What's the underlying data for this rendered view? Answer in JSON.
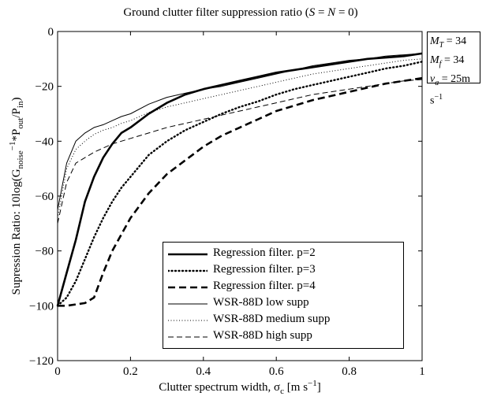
{
  "chart_data": {
    "type": "line",
    "title": "Ground clutter filter suppression ratio (S = N = 0)",
    "xlabel": "Clutter spectrum width, σc [m s−1]",
    "ylabel": "Supression Ratio: 10log(Gnoise−1 *Pout/Pin)",
    "xlim": [
      0,
      1
    ],
    "ylim": [
      -120,
      0
    ],
    "xticks": [
      "0",
      "0.2",
      "0.4",
      "0.6",
      "0.8",
      "1"
    ],
    "yticks": [
      "0",
      "−20",
      "−40",
      "−60",
      "−80",
      "−100",
      "−120"
    ],
    "grid": false,
    "legend_position": "lower-right",
    "parameters": [
      "MT = 34",
      "Mf = 34",
      "va = 25m s−1"
    ],
    "x": [
      0,
      0.025,
      0.05,
      0.075,
      0.1,
      0.125,
      0.15,
      0.175,
      0.2,
      0.25,
      0.3,
      0.35,
      0.4,
      0.45,
      0.5,
      0.55,
      0.6,
      0.65,
      0.7,
      0.75,
      0.8,
      0.85,
      0.9,
      0.95,
      1.0
    ],
    "series": [
      {
        "name": "Regression filter. p=2",
        "style": "solid-thick",
        "values": [
          -100,
          -88,
          -76,
          -62,
          -53,
          -46,
          -41,
          -37,
          -35,
          -30,
          -26,
          -23,
          -21,
          -19.5,
          -18,
          -16.5,
          -15,
          -14,
          -13,
          -12,
          -11,
          -10,
          -9.5,
          -9,
          -8
        ]
      },
      {
        "name": "Regression filter. p=3",
        "style": "dotted-thick",
        "values": [
          -100,
          -97,
          -91,
          -83,
          -75,
          -68,
          -62,
          -57,
          -53,
          -45,
          -40,
          -36,
          -33,
          -30,
          -27.5,
          -25.5,
          -23,
          -21,
          -19.5,
          -18,
          -16.5,
          -15,
          -13.5,
          -12.5,
          -11
        ]
      },
      {
        "name": "Regression filter. p=4",
        "style": "dashed-thick",
        "values": [
          -100,
          -100,
          -99.5,
          -99,
          -97,
          -88,
          -80,
          -74,
          -68,
          -59,
          -52,
          -47,
          -42,
          -38,
          -35,
          -32,
          -29,
          -27,
          -25,
          -23.5,
          -22,
          -20.5,
          -19,
          -18,
          -17
        ]
      },
      {
        "name": "WSR-88D low supp",
        "style": "solid-thin",
        "values": [
          -65,
          -48,
          -40,
          -37,
          -35,
          -34,
          -32.5,
          -31,
          -30,
          -26.5,
          -24,
          -22.5,
          -21,
          -20,
          -18.5,
          -17,
          -15.5,
          -14,
          -12.5,
          -11.5,
          -10.5,
          -10,
          -9,
          -8.5,
          -8
        ]
      },
      {
        "name": "WSR-88D medium supp",
        "style": "dotted-thin",
        "values": [
          -68,
          -50,
          -43,
          -40,
          -37.5,
          -36,
          -35,
          -33.5,
          -32.5,
          -29.5,
          -27.5,
          -26,
          -24.5,
          -23,
          -21.5,
          -20,
          -18.5,
          -17,
          -15.5,
          -14.5,
          -13.5,
          -12.5,
          -11.5,
          -10.5,
          -10
        ]
      },
      {
        "name": "WSR-88D high supp",
        "style": "dashed-thin",
        "values": [
          -70,
          -55,
          -48,
          -46,
          -44,
          -42.5,
          -41,
          -40,
          -39,
          -37,
          -35,
          -33.5,
          -32,
          -30.5,
          -29,
          -27.5,
          -26,
          -24.5,
          -23,
          -22,
          -21,
          -20,
          -19,
          -18,
          -17.5
        ]
      }
    ]
  }
}
